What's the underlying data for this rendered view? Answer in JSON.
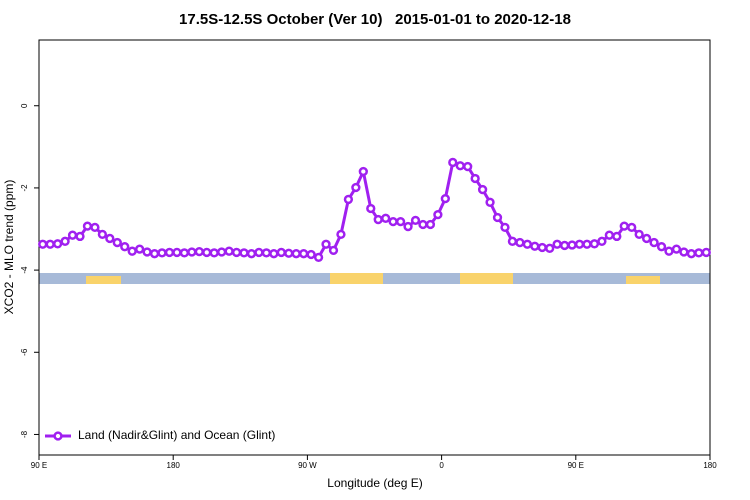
{
  "chart_data": {
    "type": "line",
    "title": "17.5S-12.5S October (Ver 10)   2015-01-01 to 2020-12-18",
    "x_label": "Longitude (deg E)",
    "y_label": "XCO2 - MLO trend (ppm)",
    "x": [
      92.5,
      97.5,
      102.5,
      107.5,
      112.5,
      117.5,
      122.5,
      127.5,
      132.5,
      137.5,
      142.5,
      147.5,
      152.5,
      157.5,
      162.5,
      167.5,
      172.5,
      177.5,
      182.5,
      187.5,
      192.5,
      197.5,
      202.5,
      207.5,
      212.5,
      217.5,
      222.5,
      227.5,
      232.5,
      237.5,
      242.5,
      247.5,
      252.5,
      257.5,
      262.5,
      267.5,
      272.5,
      277.5,
      282.5,
      287.5,
      292.5,
      297.5,
      302.5,
      307.5,
      312.5,
      317.5,
      322.5,
      327.5,
      332.5,
      337.5,
      342.5,
      347.5,
      352.5,
      357.5,
      362.5,
      367.5,
      372.5,
      377.5,
      382.5,
      387.5,
      392.5,
      397.5,
      402.5,
      407.5,
      412.5,
      417.5,
      422.5,
      427.5,
      432.5,
      437.5,
      442.5,
      447.5,
      452.5,
      457.5,
      462.5,
      467.5,
      472.5,
      477.5,
      482.5,
      487.5,
      492.5,
      497.5,
      502.5,
      507.5,
      512.5,
      517.5,
      522.5,
      527.5,
      532.5,
      537.5
    ],
    "series": [
      {
        "name": "Land (Nadir&Glint) and Ocean (Glint)",
        "color": "#a020f0",
        "values": [
          -3.37,
          -3.37,
          -3.36,
          -3.3,
          -3.15,
          -3.18,
          -2.93,
          -2.96,
          -3.13,
          -3.23,
          -3.33,
          -3.43,
          -3.54,
          -3.49,
          -3.56,
          -3.6,
          -3.58,
          -3.57,
          -3.57,
          -3.58,
          -3.56,
          -3.55,
          -3.57,
          -3.58,
          -3.56,
          -3.54,
          -3.57,
          -3.58,
          -3.6,
          -3.57,
          -3.58,
          -3.6,
          -3.57,
          -3.59,
          -3.6,
          -3.6,
          -3.62,
          -3.69,
          -3.37,
          -3.52,
          -3.13,
          -2.28,
          -1.99,
          -1.6,
          -2.5,
          -2.77,
          -2.74,
          -2.82,
          -2.82,
          -2.94,
          -2.79,
          -2.89,
          -2.89,
          -2.65,
          -2.26,
          -1.38,
          -1.46,
          -1.48,
          -1.77,
          -2.04,
          -2.35,
          -2.72,
          -2.96,
          -3.3,
          -3.33,
          -3.37,
          -3.42,
          -3.45,
          -3.47,
          -3.37,
          -3.4,
          -3.39,
          -3.37,
          -3.37,
          -3.36,
          -3.3,
          -3.15,
          -3.18,
          -2.93,
          -2.96,
          -3.13,
          -3.23,
          -3.33,
          -3.43,
          -3.54,
          -3.49,
          -3.56,
          -3.6,
          -3.58,
          -3.57
        ]
      }
    ],
    "xlim": [
      90,
      540
    ],
    "xticks": [
      {
        "value": 90,
        "label": "90 E"
      },
      180,
      {
        "value": 270,
        "label": "90 W"
      },
      {
        "value": 360,
        "label": "0"
      },
      {
        "value": 450,
        "label": "90 E"
      },
      {
        "value": 540,
        "label": "180"
      }
    ],
    "ylim": [
      -8.5,
      1.6
    ],
    "yticks": [
      0,
      -2,
      -4,
      -6,
      -8
    ],
    "legend": "bottom-left"
  }
}
